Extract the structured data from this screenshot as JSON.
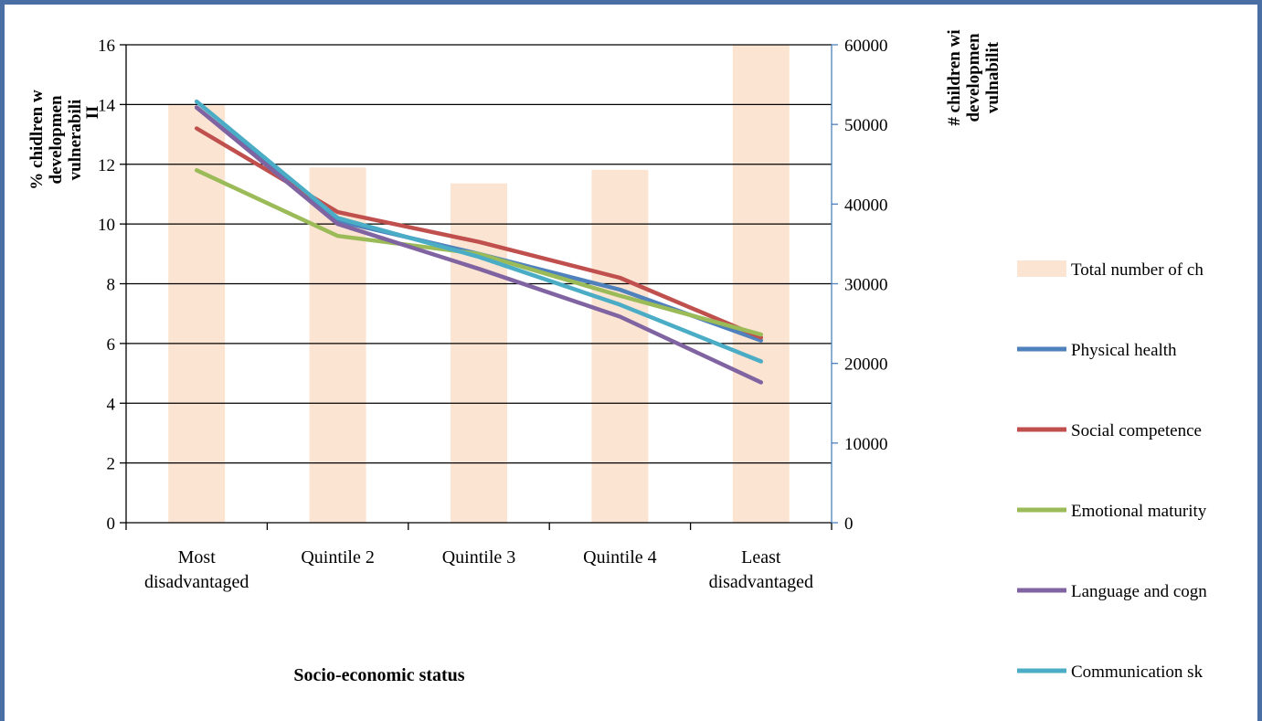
{
  "chart_data": {
    "type": "bar",
    "categories": [
      [
        "Most",
        "disadvantaged"
      ],
      [
        "Quintile 2"
      ],
      [
        "Quintile 3"
      ],
      [
        "Quintile 4"
      ],
      [
        "Least",
        "disadvantaged"
      ]
    ],
    "y_left": {
      "label_lines": [
        "% chidlren w",
        "developmen",
        "vulnerabili"
      ],
      "label_overlay": "II",
      "ylim": [
        0,
        16
      ],
      "ticks": [
        0,
        2,
        4,
        6,
        8,
        10,
        12,
        14,
        16
      ],
      "tick_labels": [
        "0",
        "2",
        "4",
        "6",
        "8",
        "10",
        "12",
        "14",
        "16"
      ]
    },
    "y_right": {
      "label_lines": [
        "# children wi",
        "developmen",
        "vulnabilit"
      ],
      "ylim": [
        0,
        60000
      ],
      "ticks": [
        0,
        10000,
        20000,
        30000,
        40000,
        50000,
        60000
      ],
      "tick_labels": [
        "0",
        "10000",
        "20000",
        "30000",
        "40000",
        "50000",
        "60000"
      ]
    },
    "xlabel": "Socio-economic status",
    "grid": true,
    "bars": {
      "name": "Total number of ch",
      "axis": "right",
      "color": "#fce4d2",
      "values": [
        52500,
        44600,
        42600,
        44300,
        60000
      ]
    },
    "series": [
      {
        "name": "Physical health",
        "type": "line",
        "axis": "left",
        "color": "#4f81bd",
        "values": [
          13.9,
          10.1,
          9.0,
          7.8,
          6.1
        ]
      },
      {
        "name": "Social competence",
        "type": "line",
        "axis": "left",
        "color": "#c0504d",
        "values": [
          13.2,
          10.4,
          9.4,
          8.2,
          6.2
        ]
      },
      {
        "name": "Emotional maturity",
        "type": "line",
        "axis": "left",
        "color": "#9bbb59",
        "values": [
          11.8,
          9.6,
          9.0,
          7.6,
          6.3
        ]
      },
      {
        "name": "Language and cogn",
        "type": "line",
        "axis": "left",
        "color": "#8064a2",
        "values": [
          13.9,
          10.0,
          8.5,
          6.9,
          4.7
        ]
      },
      {
        "name": "Communication sk",
        "type": "line",
        "axis": "left",
        "color": "#4bacc6",
        "values": [
          14.1,
          10.2,
          8.9,
          7.3,
          5.4
        ]
      }
    ],
    "legend": {
      "placement": "right"
    }
  }
}
